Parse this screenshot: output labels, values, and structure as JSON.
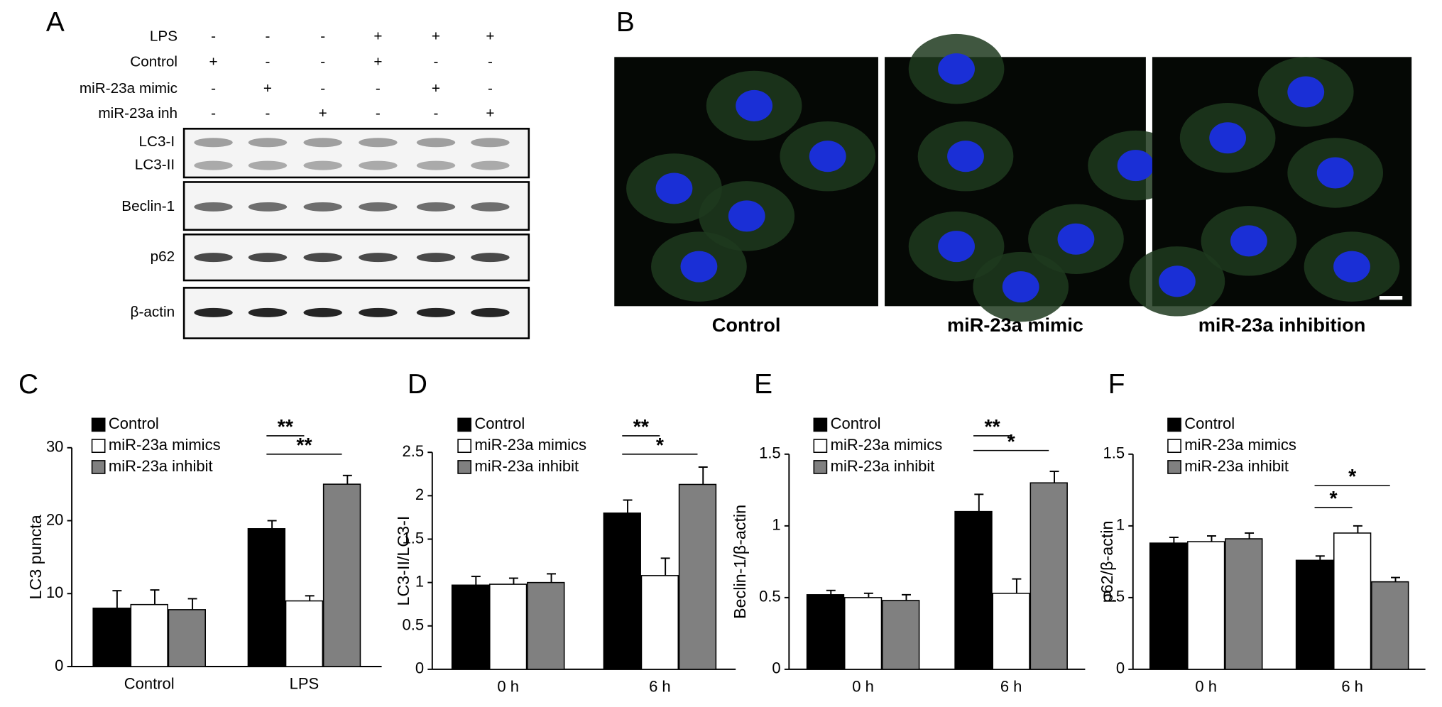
{
  "panel_a": {
    "label": "A",
    "rows": [
      {
        "label": "LPS",
        "signs": [
          "-",
          "-",
          "-",
          "+",
          "+",
          "+"
        ]
      },
      {
        "label": "Control",
        "signs": [
          "+",
          "-",
          "-",
          "+",
          "-",
          "-"
        ]
      },
      {
        "label": "miR-23a mimic",
        "signs": [
          "-",
          "+",
          "-",
          "-",
          "+",
          "-"
        ]
      },
      {
        "label": "miR-23a inh",
        "signs": [
          "-",
          "-",
          "+",
          "-",
          "-",
          "+"
        ]
      }
    ],
    "blots": [
      [
        "LC3-I",
        "LC3-II"
      ],
      [
        "Beclin-1"
      ],
      [
        "p62"
      ],
      [
        "β-actin"
      ]
    ]
  },
  "panel_b": {
    "label": "B",
    "captions": [
      "Control",
      "miR-23a mimic",
      "miR-23a inhibition"
    ]
  },
  "chart_data": [
    {
      "type": "bar",
      "label": "C",
      "ylabel": "LC3 puncta",
      "categories": [
        "Control",
        "LPS"
      ],
      "series": [
        {
          "name": "Control",
          "color": "#000000",
          "values": [
            8,
            18.9
          ],
          "errors": [
            2.4,
            1.1
          ]
        },
        {
          "name": "miR-23a mimics",
          "color": "#ffffff",
          "values": [
            8.5,
            9
          ],
          "errors": [
            2,
            0.7
          ]
        },
        {
          "name": "miR-23a inhibit",
          "color": "#808080",
          "values": [
            7.8,
            25
          ],
          "errors": [
            1.5,
            1.2
          ]
        }
      ],
      "ylim": [
        0,
        30
      ],
      "yticks": [
        0,
        10,
        20,
        30
      ],
      "annotations": [
        "**",
        "**"
      ]
    },
    {
      "type": "bar",
      "label": "D",
      "ylabel": "LC3-II/LC3-I",
      "categories": [
        "0 h",
        "6 h"
      ],
      "series": [
        {
          "name": "Control",
          "color": "#000000",
          "values": [
            0.97,
            1.8
          ],
          "errors": [
            0.1,
            0.15
          ]
        },
        {
          "name": "miR-23a mimics",
          "color": "#ffffff",
          "values": [
            0.98,
            1.08
          ],
          "errors": [
            0.07,
            0.2
          ]
        },
        {
          "name": "miR-23a inhibit",
          "color": "#808080",
          "values": [
            1.0,
            2.13
          ],
          "errors": [
            0.1,
            0.2
          ]
        }
      ],
      "ylim": [
        0,
        2.5
      ],
      "yticks": [
        0,
        0.5,
        1,
        1.5,
        2,
        2.5
      ],
      "annotations": [
        "**",
        "*"
      ]
    },
    {
      "type": "bar",
      "label": "E",
      "ylabel": "Beclin-1/β-actin",
      "categories": [
        "0 h",
        "6 h"
      ],
      "series": [
        {
          "name": "Control",
          "color": "#000000",
          "values": [
            0.52,
            1.1
          ],
          "errors": [
            0.03,
            0.12
          ]
        },
        {
          "name": "miR-23a mimics",
          "color": "#ffffff",
          "values": [
            0.5,
            0.53
          ],
          "errors": [
            0.03,
            0.1
          ]
        },
        {
          "name": "miR-23a inhibit",
          "color": "#808080",
          "values": [
            0.48,
            1.3
          ],
          "errors": [
            0.04,
            0.08
          ]
        }
      ],
      "ylim": [
        0,
        1.5
      ],
      "yticks": [
        0,
        0.5,
        1,
        1.5
      ],
      "annotations": [
        "**",
        "*"
      ]
    },
    {
      "type": "bar",
      "label": "F",
      "ylabel": "p62/β-actin",
      "categories": [
        "0 h",
        "6 h"
      ],
      "series": [
        {
          "name": "Control",
          "color": "#000000",
          "values": [
            0.88,
            0.76
          ],
          "errors": [
            0.04,
            0.03
          ]
        },
        {
          "name": "miR-23a mimics",
          "color": "#ffffff",
          "values": [
            0.89,
            0.95
          ],
          "errors": [
            0.04,
            0.05
          ]
        },
        {
          "name": "miR-23a inhibit",
          "color": "#808080",
          "values": [
            0.91,
            0.61
          ],
          "errors": [
            0.04,
            0.03
          ]
        }
      ],
      "ylim": [
        0,
        1.5
      ],
      "yticks": [
        0,
        0.5,
        1,
        1.5
      ],
      "annotations": [
        "*",
        "*"
      ]
    }
  ]
}
